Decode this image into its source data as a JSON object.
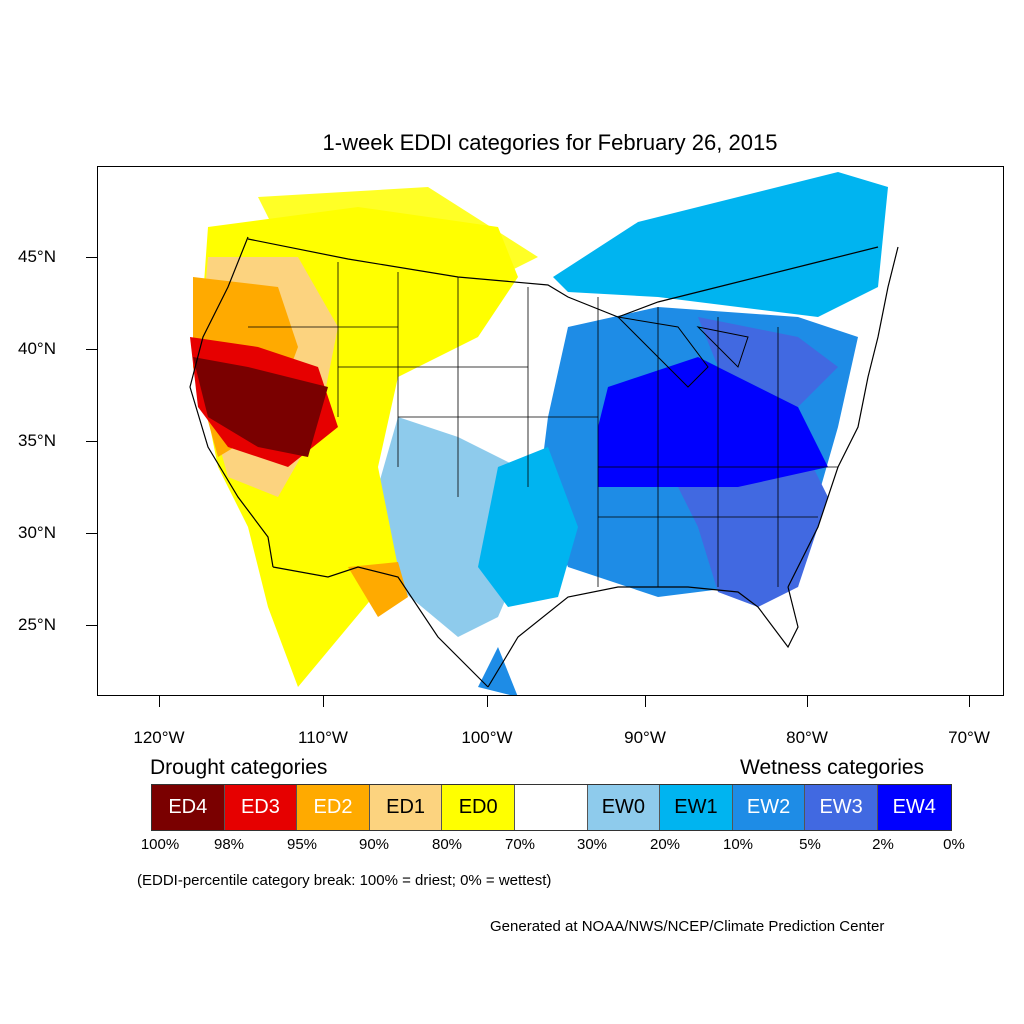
{
  "title": "1-week EDDI categories for February 26, 2015",
  "lat_labels": [
    "45°N",
    "40°N",
    "35°N",
    "30°N",
    "25°N"
  ],
  "lon_labels": [
    "120°W",
    "110°W",
    "100°W",
    "90°W",
    "80°W",
    "70°W"
  ],
  "legend": {
    "drought_heading": "Drought categories",
    "wetness_heading": "Wetness categories",
    "categories": [
      {
        "label": "ED4",
        "color": "#7a0000",
        "text_color": "#ffffff"
      },
      {
        "label": "ED3",
        "color": "#e60000",
        "text_color": "#ffffff"
      },
      {
        "label": "ED2",
        "color": "#ffaa00",
        "text_color": "#ffffff"
      },
      {
        "label": "ED1",
        "color": "#fcd37f",
        "text_color": "#000000"
      },
      {
        "label": "ED0",
        "color": "#ffff00",
        "text_color": "#000000"
      },
      {
        "label": "",
        "color": "#ffffff",
        "text_color": "#000000"
      },
      {
        "label": "EW0",
        "color": "#8ecbec",
        "text_color": "#000000"
      },
      {
        "label": "EW1",
        "color": "#00b4f0",
        "text_color": "#000000"
      },
      {
        "label": "EW2",
        "color": "#1e8ce6",
        "text_color": "#ffffff"
      },
      {
        "label": "EW3",
        "color": "#4169e1",
        "text_color": "#ffffff"
      },
      {
        "label": "EW4",
        "color": "#0000ff",
        "text_color": "#ffffff"
      }
    ],
    "breaks": [
      "100%",
      "98%",
      "95%",
      "90%",
      "80%",
      "70%",
      "30%",
      "20%",
      "10%",
      "5%",
      "2%",
      "0%"
    ]
  },
  "note": "(EDDI-percentile category break: 100% = driest; 0% = wettest)",
  "credit": "Generated at NOAA/NWS/NCEP/Climate Prediction Center"
}
